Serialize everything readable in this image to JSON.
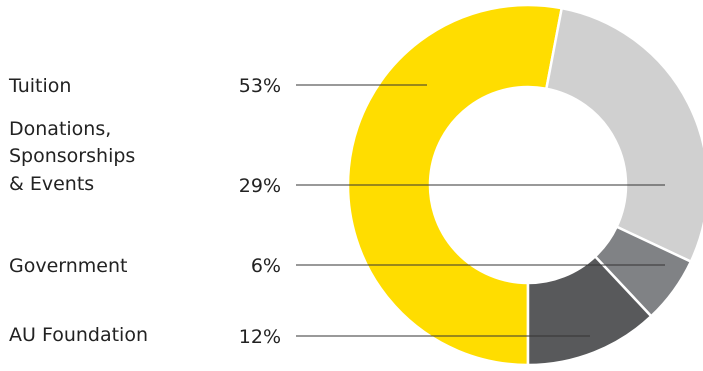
{
  "chart_data": {
    "type": "donut",
    "title": "",
    "categories": [
      "Tuition",
      "Donations, Sponsorships & Events",
      "Government",
      "AU Foundation"
    ],
    "label_lines": [
      [
        "Tuition"
      ],
      [
        "Donations,",
        "Sponsorships",
        "& Events"
      ],
      [
        "Government"
      ],
      [
        "AU Foundation"
      ]
    ],
    "values": [
      53,
      29,
      6,
      12
    ],
    "value_labels": [
      "53%",
      "29%",
      "6%",
      "12%"
    ],
    "colors": [
      "#FFDD00",
      "#D0D0D0",
      "#808285",
      "#58595B"
    ],
    "slice_order": [
      0,
      1,
      2,
      3
    ],
    "start": "bottom",
    "direction": "clockwise",
    "legend": "left"
  }
}
